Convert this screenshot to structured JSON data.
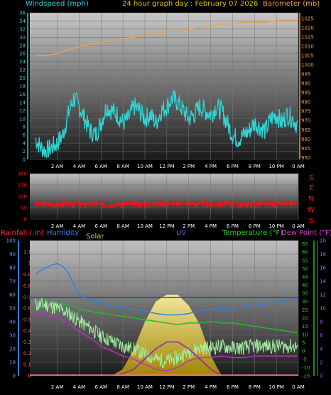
{
  "header": {
    "title": "24 hour graph day : February 07 2026",
    "left_label": "Windspeed (mph)",
    "right_label": "Barometer (mb)"
  },
  "panel3": {
    "rain_label": "Rainfall (.in)",
    "humidity_label": "Humidity",
    "solar_label": "Solar",
    "uv_label": "UV",
    "temp_label": "Temperature (°F)",
    "dew_label": "Dew Point (°F)"
  },
  "colors": {
    "wind": "#2fd4d4",
    "baro": "#f0a050",
    "dir": "#ff1010",
    "humidity": "#2f80e0",
    "temperature": "#20c020",
    "dewpoint": "#c030c0",
    "solar": "#f0e060",
    "uv": "#9020c0",
    "baseline": "#2040c0",
    "rain_axis": "#ff3030"
  },
  "chart_data": [
    {
      "type": "line",
      "title": "24 hour graph day : February 07 2026",
      "x_ticks": [
        "2 AM",
        "4 AM",
        "6 AM",
        "8 AM",
        "10 AM",
        "12 PM",
        "2 PM",
        "4 PM",
        "6 PM",
        "8 PM",
        "10 PM",
        "0 AM"
      ],
      "axes": {
        "left": {
          "label": "Windspeed (mph)",
          "ticks": [
            0,
            2,
            4,
            6,
            8,
            10,
            12,
            14,
            16,
            18,
            20,
            22,
            24,
            26,
            28,
            30,
            32,
            34,
            36
          ],
          "ylim": [
            0,
            36
          ]
        },
        "right": {
          "label": "Barometer (mb)",
          "ticks": [
            950,
            955,
            960,
            965,
            970,
            975,
            980,
            985,
            990,
            995,
            1000,
            1005,
            1010,
            1015,
            1020,
            1025
          ],
          "ylim": [
            949,
            1028
          ]
        }
      },
      "series": [
        {
          "name": "Windspeed (mph)",
          "axis": "left",
          "key": "wind",
          "hours": [
            0,
            0.5,
            1,
            1.5,
            2,
            2.5,
            3,
            3.5,
            4,
            4.5,
            5,
            5.5,
            6,
            6.5,
            7,
            7.5,
            8,
            8.5,
            9,
            9.5,
            10,
            10.5,
            11,
            11.5,
            12,
            12.5,
            13,
            13.5,
            14,
            14.5,
            15,
            15.5,
            16,
            16.5,
            17,
            17.5,
            18,
            18.5,
            19,
            19.5,
            20,
            20.5,
            21,
            21.5,
            22,
            22.5,
            23,
            23.5,
            24
          ],
          "values": [
            5,
            3,
            2,
            3,
            4,
            6,
            11,
            15,
            13,
            10,
            7,
            6,
            9,
            13,
            12,
            11,
            9,
            10,
            13,
            12,
            10,
            11,
            9,
            12,
            13,
            15,
            14,
            12,
            10,
            11,
            13,
            12,
            11,
            13,
            12,
            9,
            6,
            5,
            6,
            7,
            9,
            8,
            7,
            10,
            11,
            9,
            11,
            10,
            8
          ]
        },
        {
          "name": "Barometer (mb)",
          "axis": "right",
          "key": "baro",
          "hours": [
            0,
            1,
            2,
            3,
            4,
            5,
            6,
            7,
            8,
            9,
            10,
            11,
            12,
            13,
            14,
            15,
            16,
            17,
            18,
            19,
            20,
            21,
            22,
            23,
            24
          ],
          "values": [
            1005,
            1005,
            1006,
            1008,
            1010,
            1011,
            1012,
            1013,
            1014,
            1015,
            1016,
            1017,
            1018,
            1018,
            1019,
            1020,
            1021,
            1022,
            1022,
            1023,
            1023,
            1023,
            1024,
            1024,
            1024
          ]
        }
      ]
    },
    {
      "type": "scatter",
      "y_ticks": [
        0,
        90,
        180,
        270,
        360
      ],
      "ylim": [
        0,
        360
      ],
      "direction_labels": [
        "S",
        "E",
        "N",
        "W",
        "S"
      ],
      "x_ticks": [
        "2 AM",
        "4 AM",
        "6 AM",
        "8 AM",
        "10 AM",
        "12 PM",
        "2 PM",
        "4 PM",
        "6 PM",
        "8 PM",
        "10 PM",
        "0 AM"
      ],
      "series": [
        {
          "name": "Wind Direction",
          "key": "dir",
          "hours": [
            0,
            2,
            4,
            6,
            8,
            10,
            12,
            14,
            16,
            18,
            20,
            22,
            24
          ],
          "values": [
            115,
            118,
            120,
            120,
            118,
            120,
            125,
            122,
            120,
            122,
            118,
            120,
            122
          ]
        }
      ]
    },
    {
      "type": "line",
      "x_ticks": [
        "2 AM",
        "4 AM",
        "6 AM",
        "8 AM",
        "10 AM",
        "12 PM",
        "2 PM",
        "4 PM",
        "6 PM",
        "8 PM",
        "10 PM",
        "0 AM"
      ],
      "axes": {
        "humidity": {
          "ticks": [
            0,
            10,
            20,
            30,
            40,
            50,
            60,
            70,
            80,
            90,
            100
          ],
          "ylim": [
            0,
            100
          ]
        },
        "rain": {
          "ticks": [
            "0",
            "0.1",
            "0.2",
            "0.3",
            "0.4",
            "0.5",
            "0.6",
            "0.7",
            "0.8",
            "0.9",
            "1",
            "1.1"
          ],
          "ylim": [
            0,
            1.2
          ]
        },
        "temperature": {
          "ticks": [
            -15,
            -10,
            -5,
            0,
            5,
            10,
            15,
            20,
            25,
            30,
            35,
            40,
            45,
            50,
            55,
            60,
            65
          ],
          "ylim": [
            -15,
            67
          ]
        },
        "uv": {
          "ticks": [
            0,
            2,
            4,
            6,
            8,
            10,
            12,
            14,
            16,
            18,
            20
          ],
          "ylim": [
            0,
            20
          ]
        }
      },
      "series": [
        {
          "name": "Humidity",
          "axis": "humidity",
          "key": "humidity",
          "hours": [
            0,
            0.5,
            1,
            1.5,
            2,
            2.5,
            3,
            3.5,
            4,
            5,
            6,
            7,
            8,
            9,
            10,
            11,
            12,
            13,
            14,
            15,
            16,
            17,
            18,
            19,
            20,
            21,
            22,
            23,
            24
          ],
          "values": [
            75,
            78,
            80,
            82,
            83,
            81,
            76,
            68,
            60,
            56,
            54,
            52,
            51,
            49,
            48,
            46,
            45,
            45,
            46,
            48,
            49,
            50,
            50,
            51,
            52,
            53,
            55,
            56,
            57
          ]
        },
        {
          "name": "Temperature (°F)",
          "axis": "temperature",
          "key": "temperature",
          "hours": [
            0,
            1,
            2,
            3,
            4,
            5,
            6,
            7,
            8,
            9,
            10,
            11,
            12,
            13,
            14,
            15,
            16,
            17,
            18,
            19,
            20,
            21,
            22,
            23,
            24
          ],
          "values": [
            29,
            29,
            29,
            28,
            26,
            24,
            23,
            22,
            21,
            20,
            19,
            18,
            17,
            16,
            17,
            17,
            18,
            17,
            17,
            16,
            15,
            14,
            13,
            12,
            11
          ]
        },
        {
          "name": "Dew Point (°F)",
          "axis": "temperature",
          "key": "dewpoint",
          "hours": [
            0,
            1,
            2,
            3,
            4,
            5,
            6,
            7,
            8,
            9,
            10,
            11,
            12,
            13,
            14,
            15,
            16,
            17,
            18,
            19,
            20,
            21,
            22,
            23,
            24
          ],
          "values": [
            22,
            22,
            20,
            17,
            12,
            8,
            3,
            0,
            -3,
            -5,
            -8,
            -11,
            -12,
            -10,
            -6,
            -4,
            -4,
            -3,
            -4,
            -4,
            -3,
            -3,
            -3,
            -3,
            -3
          ]
        },
        {
          "name": "Solar",
          "key": "solar",
          "hours": [
            7,
            8,
            9,
            10,
            11,
            12,
            13,
            14,
            15,
            16,
            17
          ],
          "values": [
            0,
            5,
            20,
            40,
            55,
            60,
            60,
            52,
            38,
            15,
            0
          ]
        },
        {
          "name": "UV",
          "axis": "uv",
          "key": "uv",
          "hours": [
            7,
            8,
            9,
            10,
            11,
            12,
            13,
            14,
            15,
            16,
            17
          ],
          "values": [
            0,
            0.3,
            1,
            2.5,
            4,
            5,
            5,
            4,
            2.5,
            1,
            0
          ]
        },
        {
          "name": "Rainfall (.in)",
          "axis": "rain",
          "key": "rain",
          "hours": [
            0,
            24
          ],
          "values": [
            0,
            0
          ]
        }
      ]
    }
  ]
}
